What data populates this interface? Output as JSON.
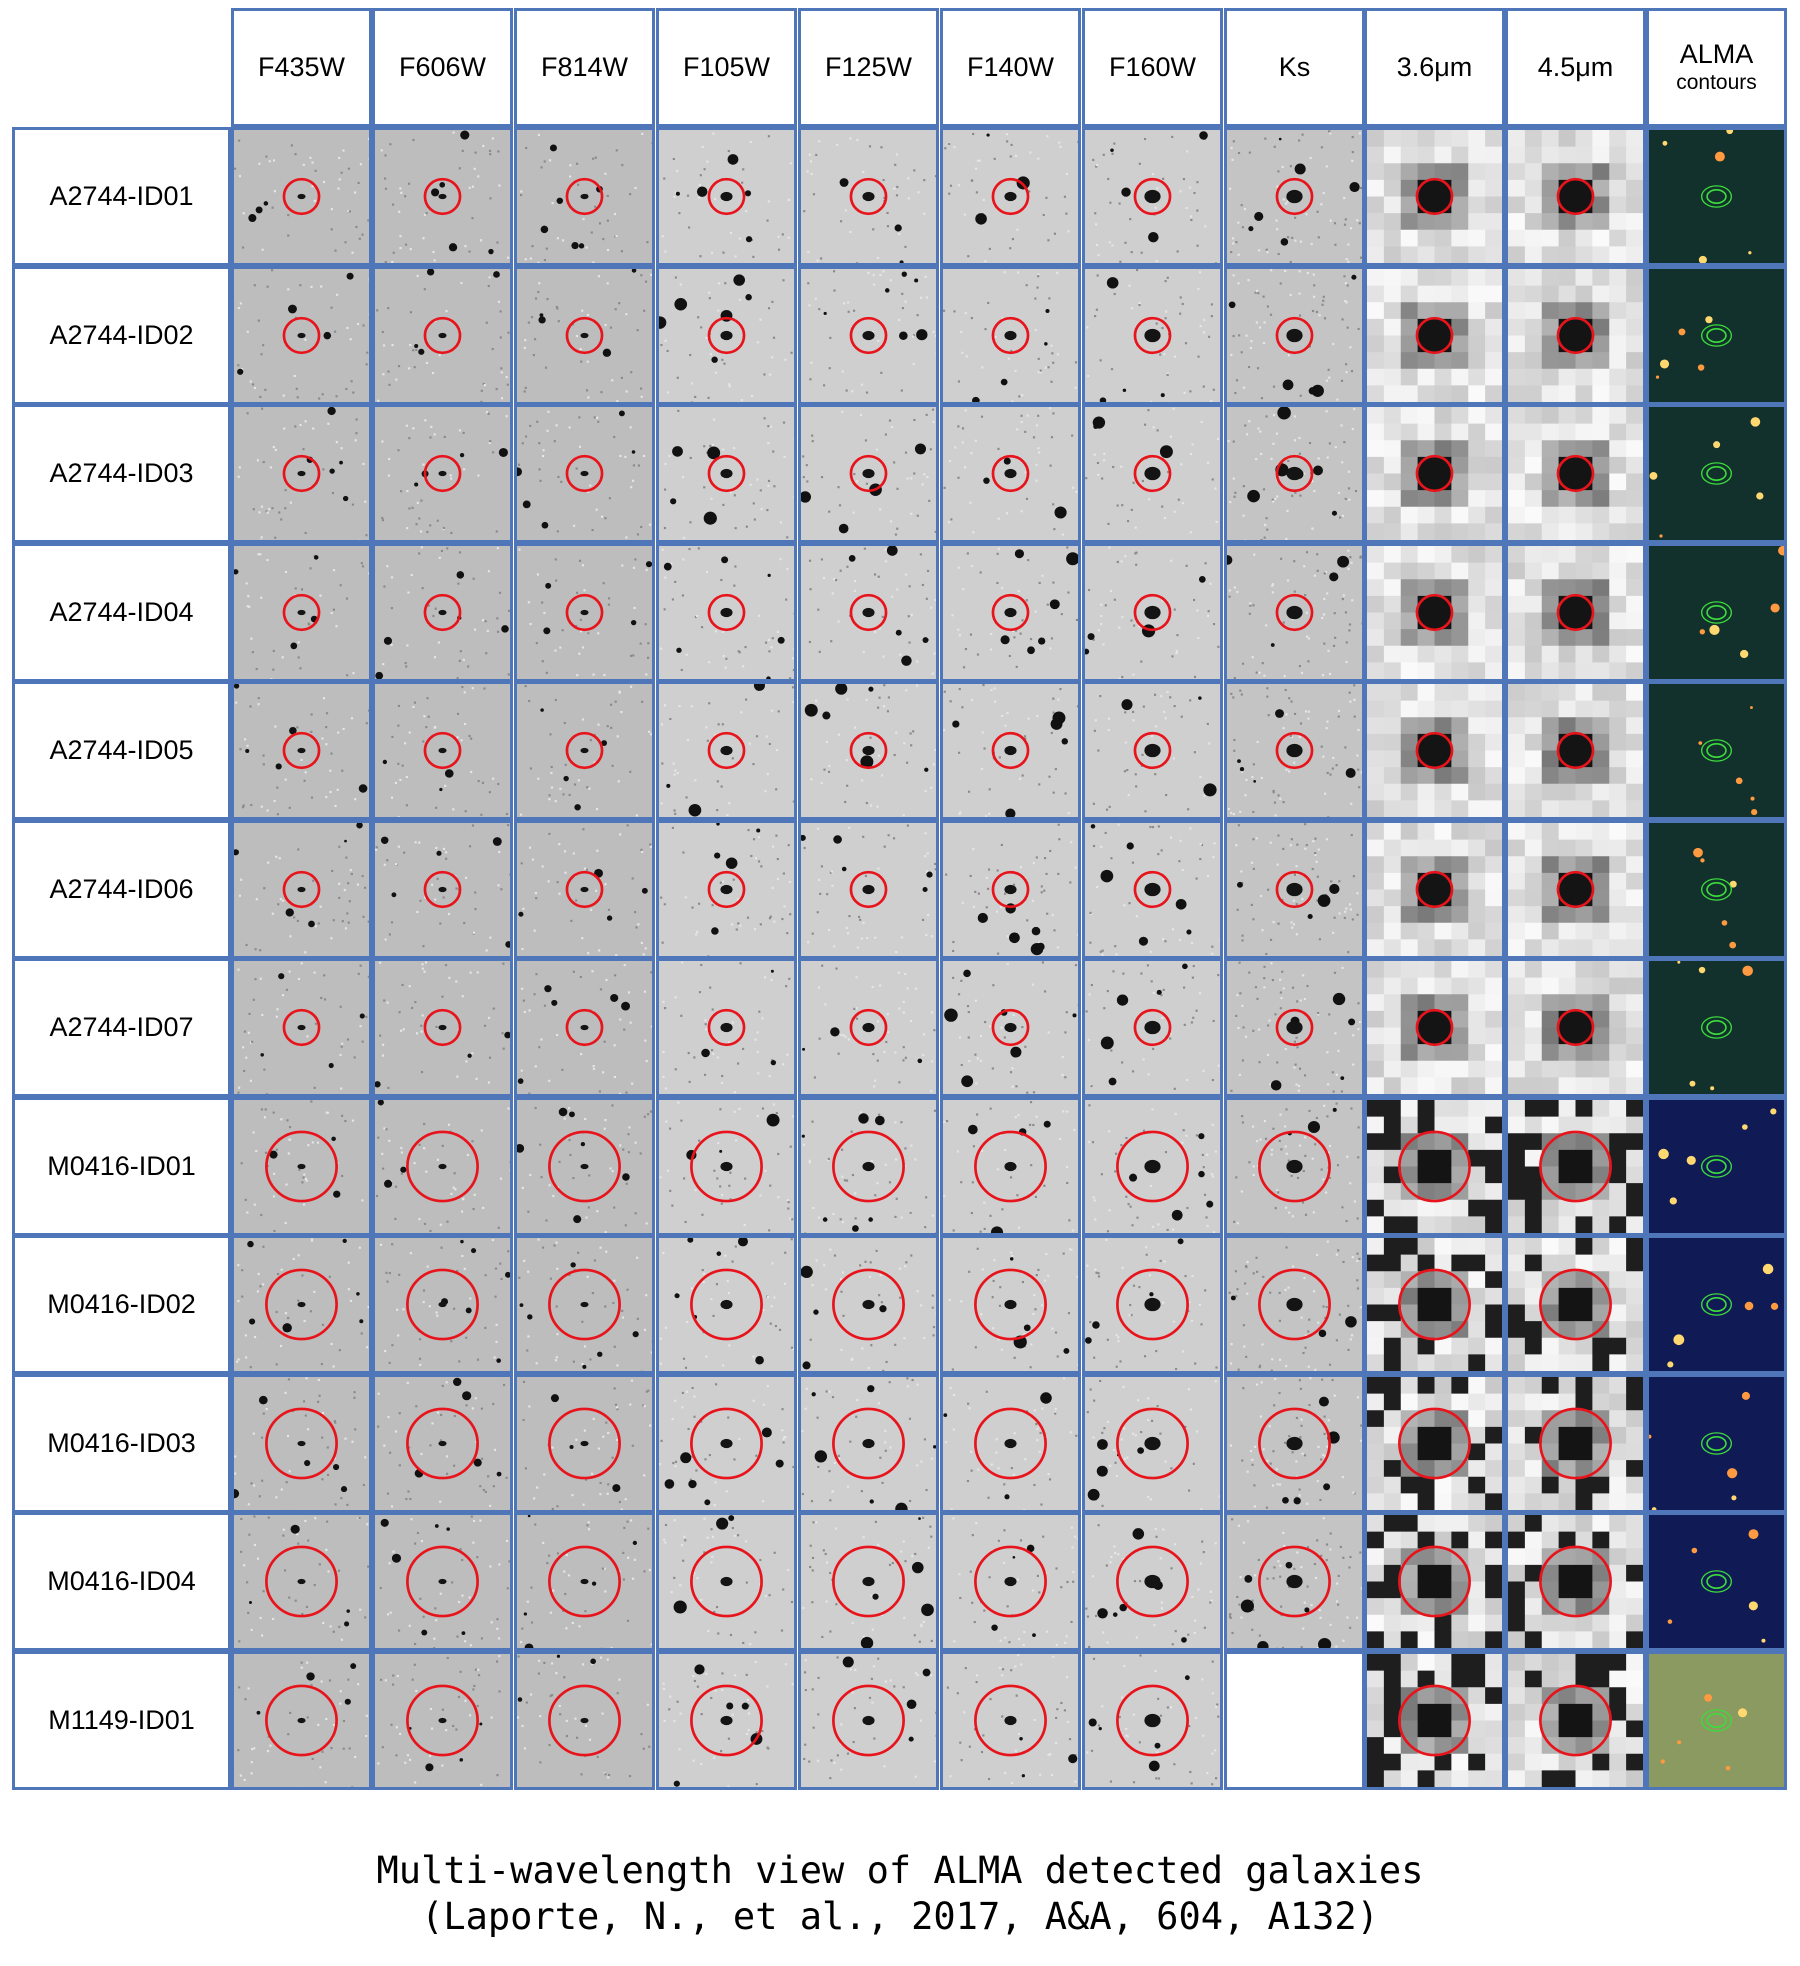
{
  "figure": {
    "columns": [
      {
        "label": "F435W",
        "sub": ""
      },
      {
        "label": "F606W",
        "sub": ""
      },
      {
        "label": "F814W",
        "sub": ""
      },
      {
        "label": "F105W",
        "sub": ""
      },
      {
        "label": "F125W",
        "sub": ""
      },
      {
        "label": "F140W",
        "sub": ""
      },
      {
        "label": "F160W",
        "sub": ""
      },
      {
        "label": "Ks",
        "sub": ""
      },
      {
        "label": "3.6μm",
        "sub": ""
      },
      {
        "label": "4.5μm",
        "sub": ""
      },
      {
        "label": "ALMA",
        "sub": "contours"
      }
    ],
    "rows": [
      {
        "label": "A2744-ID01"
      },
      {
        "label": "A2744-ID02"
      },
      {
        "label": "A2744-ID03"
      },
      {
        "label": "A2744-ID04"
      },
      {
        "label": "A2744-ID05"
      },
      {
        "label": "A2744-ID06"
      },
      {
        "label": "A2744-ID07"
      },
      {
        "label": "M0416-ID01"
      },
      {
        "label": "M0416-ID02"
      },
      {
        "label": "M0416-ID03"
      },
      {
        "label": "M0416-ID04"
      },
      {
        "label": "M1149-ID01"
      }
    ],
    "empty_cells": [
      {
        "row": 11,
        "col": 7
      }
    ]
  },
  "caption": {
    "line1": "Multi-wavelength view of ALMA detected galaxies",
    "line2": "(Laporte, N., et al., 2017, A&A, 604, A132)"
  },
  "colors": {
    "grid_border": "#4f76b8",
    "circle": "#e8141c",
    "alma_contour": "#3cdc3c"
  }
}
